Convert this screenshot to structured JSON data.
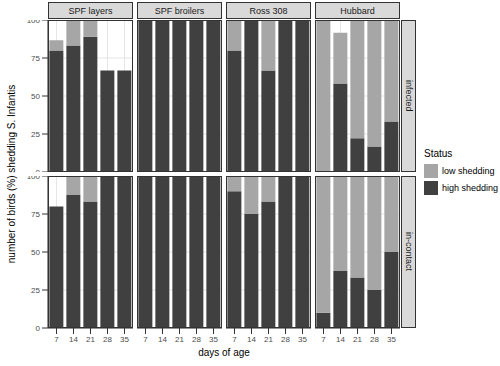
{
  "chart_data": {
    "type": "bar",
    "stacked": true,
    "grid": true,
    "legend": "right",
    "legend_title": "Status",
    "x_label": "days of age",
    "y_label": "number of birds (%) shedding S. Infantis",
    "categories": [
      "7",
      "14",
      "21",
      "28",
      "35"
    ],
    "ylim": [
      0,
      100
    ],
    "yticks": [
      0,
      25,
      50,
      75,
      100
    ],
    "facet_columns": [
      "SPF layers",
      "SPF broilers",
      "Ross 308",
      "Hubbard"
    ],
    "facet_rows": [
      "infected",
      "in-contact"
    ],
    "series": [
      {
        "name": "high shedding",
        "color": "#404040",
        "values": [
          [
            [
              80,
              83.3,
              88.9,
              66.7,
              66.7
            ],
            [
              100,
              100,
              100,
              100,
              100
            ],
            [
              80,
              100,
              66.7,
              100,
              100
            ],
            [
              0,
              58.3,
              22.2,
              16.7,
              33.3
            ]
          ],
          [
            [
              80,
              87.5,
              83.3,
              100,
              100
            ],
            [
              100,
              100,
              100,
              100,
              100
            ],
            [
              90,
              75,
              83.3,
              100,
              100
            ],
            [
              10,
              37.5,
              33.3,
              25,
              50
            ]
          ]
        ]
      },
      {
        "name": "low shedding",
        "color": "#a6a6a6",
        "values": [
          [
            [
              6.7,
              16.7,
              11.1,
              0,
              0
            ],
            [
              0,
              0,
              0,
              0,
              0
            ],
            [
              20,
              0,
              33.3,
              0,
              0
            ],
            [
              100,
              33.3,
              77.8,
              83.3,
              66.7
            ]
          ],
          [
            [
              0,
              12.5,
              16.7,
              0,
              0
            ],
            [
              0,
              0,
              0,
              0,
              0
            ],
            [
              10,
              25,
              16.7,
              0,
              0
            ],
            [
              90,
              62.5,
              66.7,
              75,
              50
            ]
          ]
        ]
      }
    ]
  }
}
